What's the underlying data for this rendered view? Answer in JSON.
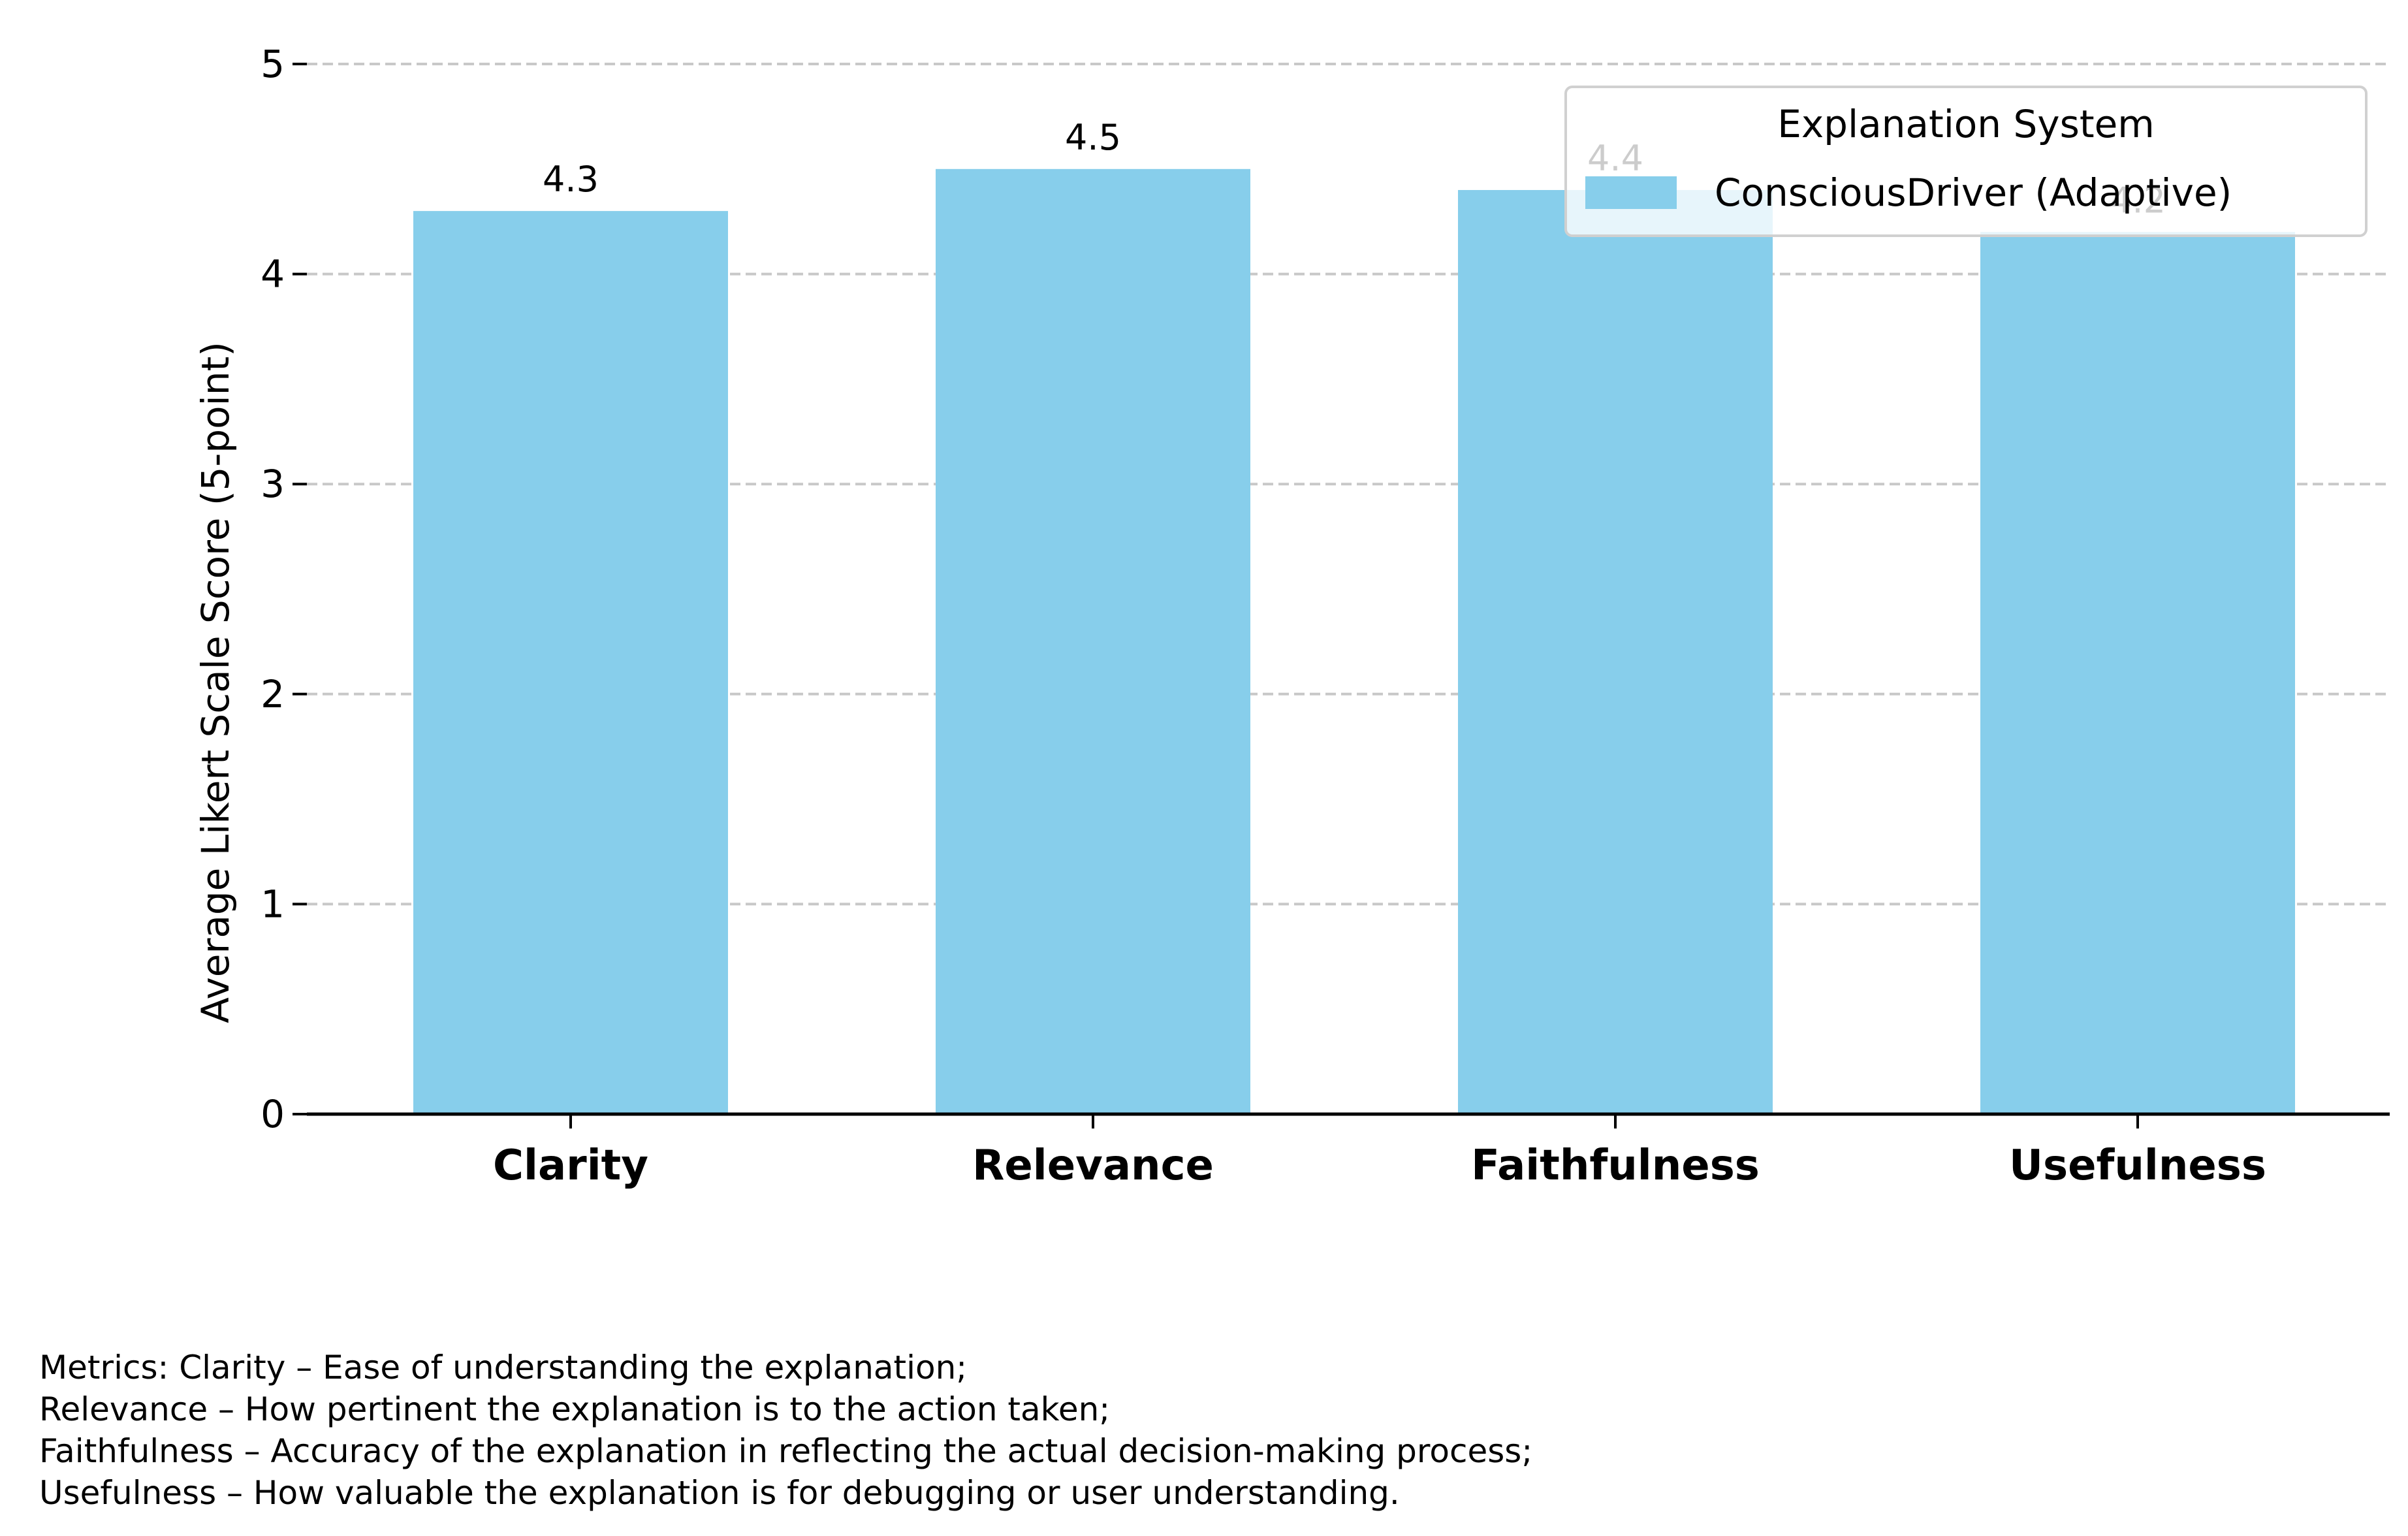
{
  "chart_data": {
    "type": "bar",
    "categories": [
      "Clarity",
      "Relevance",
      "Faithfulness",
      "Usefulness"
    ],
    "series": [
      {
        "name": "ConsciousDriver (Adaptive)",
        "values": [
          4.3,
          4.5,
          4.4,
          4.2
        ]
      }
    ],
    "value_labels": [
      "4.3",
      "4.5",
      "4.4",
      "4.2"
    ],
    "ylabel": "Average Likert Scale Score (5-point)",
    "ylim": [
      0,
      5
    ],
    "yticks": [
      "0",
      "1",
      "2",
      "3",
      "4",
      "5"
    ],
    "grid": "y-dashed",
    "legend": {
      "title": "Explanation System",
      "placement": "top-right"
    },
    "colors": {
      "bar": "#87CEEB",
      "grid": "#c8c8c8",
      "axis": "#000000"
    }
  },
  "footnote": {
    "lines": [
      "Metrics: Clarity – Ease of understanding the explanation;",
      "Relevance – How pertinent the explanation is to the action taken;",
      "Faithfulness – Accuracy of the explanation in reflecting the actual decision-making process;",
      "Usefulness – How valuable the explanation is for debugging or user understanding."
    ]
  }
}
